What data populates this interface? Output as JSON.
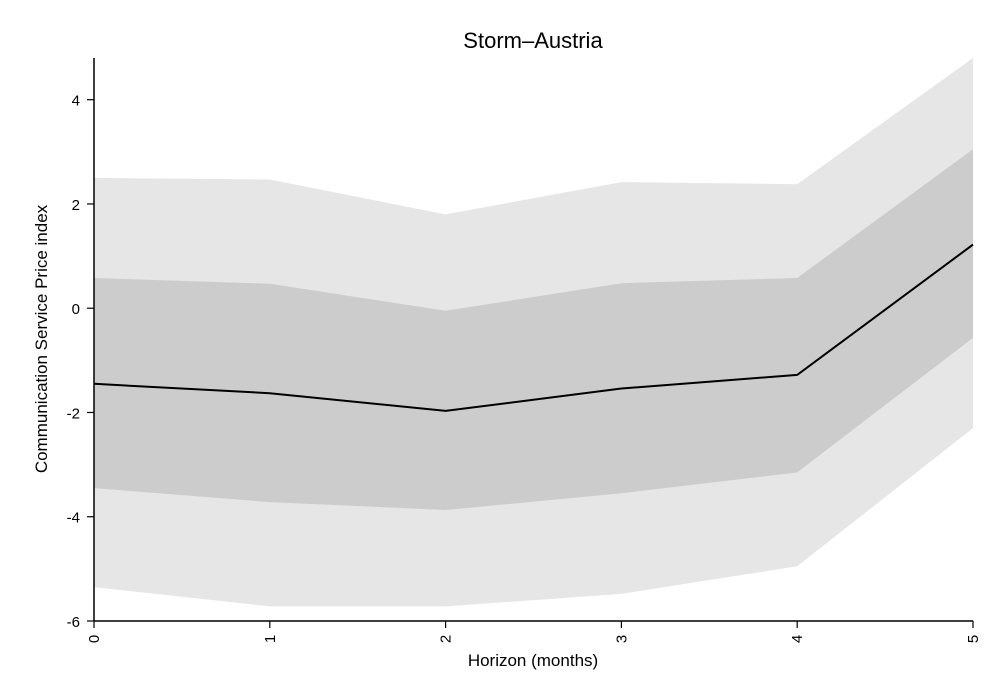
{
  "chart_data": {
    "type": "area",
    "title": "Storm–Austria",
    "xlabel": "Horizon (months)",
    "ylabel": "Communication Service Price index",
    "x": [
      0,
      1,
      2,
      3,
      4,
      5
    ],
    "xlim": [
      0,
      5
    ],
    "ylim": [
      -6,
      4.8
    ],
    "x_ticks": [
      "0",
      "1",
      "2",
      "3",
      "4",
      "5"
    ],
    "y_ticks": [
      4,
      2,
      0,
      -2,
      -4,
      -6
    ],
    "y_tick_labels": [
      "4",
      "2",
      "0",
      "-2",
      "-4",
      "-6"
    ],
    "grid": false,
    "bands": [
      {
        "lower": [
          -5.35,
          -5.72,
          -5.72,
          -5.48,
          -4.95,
          -2.3
        ],
        "upper": [
          2.5,
          2.47,
          1.8,
          2.42,
          2.38,
          4.8
        ],
        "color": "#e6e6e6"
      },
      {
        "lower": [
          -3.45,
          -3.72,
          -3.87,
          -3.55,
          -3.15,
          -0.57
        ],
        "upper": [
          0.58,
          0.47,
          -0.05,
          0.48,
          0.58,
          3.05
        ],
        "color": "#cccccc"
      }
    ],
    "series": [
      {
        "values": [
          -1.45,
          -1.63,
          -1.97,
          -1.54,
          -1.28,
          1.22
        ],
        "color": "#000000"
      }
    ]
  }
}
